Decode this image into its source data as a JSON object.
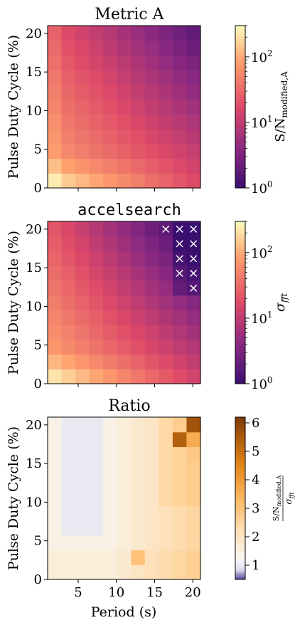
{
  "chart_data": [
    {
      "type": "heatmap",
      "title": "Metric A",
      "title_font": "serif",
      "xlabel": "",
      "ylabel": "Pulse Duty Cycle (%)",
      "x_ticks": [
        "5",
        "10",
        "15",
        "20"
      ],
      "y_ticks": [
        "0",
        "5",
        "10",
        "15",
        "20"
      ],
      "x_tick_labels_shown": false,
      "colorbar": {
        "label": "S/N_modified,A",
        "scale": "log",
        "range": [
          1,
          300
        ],
        "ticks": [
          {
            "base": "10",
            "exp": "0"
          },
          {
            "base": "10",
            "exp": "1"
          },
          {
            "base": "10",
            "exp": "2"
          }
        ]
      },
      "marked_cells": []
    },
    {
      "type": "heatmap",
      "title": "accelsearch",
      "title_font": "monospace",
      "xlabel": "",
      "ylabel": "Pulse Duty Cycle (%)",
      "x_ticks": [
        "5",
        "10",
        "15",
        "20"
      ],
      "y_ticks": [
        "0",
        "5",
        "10",
        "15",
        "20"
      ],
      "x_tick_labels_shown": false,
      "colorbar": {
        "label": "σ_fft",
        "scale": "log",
        "range": [
          1,
          300
        ],
        "ticks": [
          {
            "base": "10",
            "exp": "0"
          },
          {
            "base": "10",
            "exp": "1"
          },
          {
            "base": "10",
            "exp": "2"
          }
        ]
      },
      "marker": "×",
      "marked_cells": [
        [
          8,
          10
        ],
        [
          9,
          10
        ],
        [
          10,
          10
        ],
        [
          9,
          9
        ],
        [
          10,
          9
        ],
        [
          9,
          8
        ],
        [
          10,
          8
        ],
        [
          9,
          7
        ],
        [
          10,
          7
        ],
        [
          10,
          6
        ]
      ]
    },
    {
      "type": "heatmap",
      "title": "Ratio",
      "title_font": "serif",
      "xlabel": "Period (s)",
      "ylabel": "Pulse Duty Cycle (%)",
      "x_ticks": [
        "5",
        "10",
        "15",
        "20"
      ],
      "y_ticks": [
        "0",
        "5",
        "10",
        "15",
        "20"
      ],
      "x_tick_labels_shown": true,
      "colorbar": {
        "label": "(S/N_modified,A)/σ_fft",
        "scale": "linear",
        "range": [
          0.5,
          6.2
        ],
        "ticks": [
          "1",
          "2",
          "3",
          "4",
          "5",
          "6"
        ]
      },
      "marked_cells": []
    }
  ],
  "colors": {
    "magma_dark": "#3b0f70",
    "magma_purple": "#8c2981",
    "magma_rose": "#de4968",
    "magma_orange": "#fe9f6d",
    "magma_light": "#fcfdbf",
    "ratio_low": "#5b3c95",
    "ratio_mid": "#f7f7f7",
    "ratio_high": "#7f3b08"
  }
}
